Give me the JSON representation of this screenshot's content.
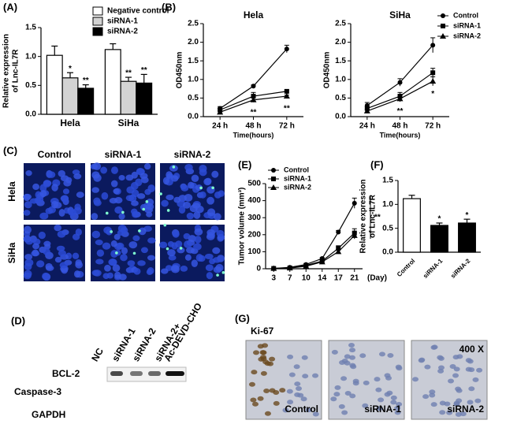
{
  "panel_labels": [
    "(A)",
    "(B)",
    "(C)",
    "(D)",
    "(E)",
    "(F)",
    "(G)"
  ],
  "chart_data": [
    {
      "type": "bar",
      "ylabel": [
        "Relative expression",
        "of Lnc-IL7R"
      ],
      "categories": [
        "Hela",
        "SiHa"
      ],
      "series": [
        {
          "name": "Negative control",
          "color": "#ffffff",
          "values": [
            1.02,
            1.12
          ],
          "errors": [
            0.16,
            0.1
          ],
          "significance": [
            null,
            null
          ]
        },
        {
          "name": "siRNA-1",
          "color": "#d3d3d3",
          "values": [
            0.63,
            0.57
          ],
          "errors": [
            0.09,
            0.07
          ],
          "significance": [
            "*",
            "**"
          ]
        },
        {
          "name": "siRNA-2",
          "color": "#000000",
          "values": [
            0.45,
            0.54
          ],
          "errors": [
            0.06,
            0.15
          ],
          "significance": [
            "**",
            "**"
          ]
        }
      ],
      "ylim": [
        0,
        1.5
      ],
      "yticks": [
        {
          "value": 0,
          "label": "0.0"
        },
        0.5,
        {
          "value": 1,
          "label": "1.0"
        },
        1.5
      ],
      "legend": true
    },
    {
      "type": "line",
      "title": "Hela",
      "ylabel": [
        "OD450nm"
      ],
      "xlabel": "Time(hours)",
      "categories": [
        "24 h",
        "48 h",
        "72 h"
      ],
      "series": [
        {
          "marker": "circle",
          "values": [
            0.22,
            0.82,
            1.82
          ],
          "errors": [
            0.05,
            0.03,
            0.1
          ]
        },
        {
          "marker": "square",
          "values": [
            0.18,
            0.55,
            0.68
          ],
          "errors": [
            0.04,
            0.1,
            0.04
          ]
        },
        {
          "marker": "triangle",
          "values": [
            0.12,
            0.45,
            0.55
          ],
          "errors": [
            0.04,
            0.06,
            0.03
          ],
          "significance": [
            null,
            "**",
            "**"
          ]
        }
      ],
      "ylim": [
        0,
        2.5
      ],
      "yticks": [
        {
          "value": 0,
          "label": "0.0"
        },
        0.5,
        {
          "value": 1,
          "label": "1.0"
        },
        1.5,
        {
          "value": 2,
          "label": "2.0"
        },
        2.5
      ],
      "legend": false
    },
    {
      "type": "line",
      "title": "SiHa",
      "ylabel": [
        "OD450nm"
      ],
      "xlabel": "Time(hours)",
      "categories": [
        "24 h",
        "48 h",
        "72 h"
      ],
      "series": [
        {
          "name": "Control",
          "marker": "circle",
          "values": [
            0.3,
            0.92,
            1.92
          ],
          "errors": [
            0.08,
            0.1,
            0.2
          ]
        },
        {
          "name": "siRNA-1",
          "marker": "square",
          "values": [
            0.22,
            0.55,
            1.18
          ],
          "errors": [
            0.05,
            0.1,
            0.12
          ]
        },
        {
          "name": "siRNA-2",
          "marker": "triangle",
          "values": [
            0.15,
            0.48,
            0.95
          ],
          "errors": [
            0.05,
            0.08,
            0.12
          ],
          "significance": [
            null,
            "**",
            "*"
          ]
        }
      ],
      "ylim": [
        0,
        2.5
      ],
      "yticks": [
        {
          "value": 0,
          "label": "0.0"
        },
        0.5,
        {
          "value": 1,
          "label": "1.0"
        },
        1.5,
        {
          "value": 2,
          "label": "2.0"
        },
        2.5
      ],
      "legend": true
    },
    {
      "type": "line",
      "ylabel": [
        "Tumor volume (mm³)"
      ],
      "xlabel": "(Day)",
      "annotation": "**",
      "categories": [
        "3",
        "7",
        "10",
        "14",
        "17",
        "21"
      ],
      "series": [
        {
          "name": "Control",
          "marker": "circle",
          "values": [
            2,
            8,
            25,
            60,
            215,
            385
          ],
          "errors": [
            1,
            2,
            4,
            6,
            10,
            30
          ]
        },
        {
          "name": "siRNA-1",
          "marker": "square",
          "values": [
            2,
            5,
            20,
            45,
            120,
            210
          ],
          "errors": [
            1,
            2,
            3,
            5,
            15,
            25
          ]
        },
        {
          "name": "siRNA-2",
          "marker": "triangle",
          "values": [
            2,
            4,
            15,
            40,
            100,
            195
          ],
          "errors": [
            1,
            2,
            3,
            5,
            12,
            20
          ]
        }
      ],
      "ylim": [
        0,
        500
      ],
      "yticks": [
        0,
        100,
        200,
        300,
        400,
        500
      ],
      "legend": true
    },
    {
      "type": "bar",
      "ylabel": [
        "Relative expression",
        "of Lnc-IL7R"
      ],
      "categories": [
        "Control",
        "siRNA-1",
        "siRNA-2"
      ],
      "values": [
        1.12,
        0.56,
        0.61
      ],
      "errors": [
        0.07,
        0.05,
        0.08
      ],
      "colors": [
        "#ffffff",
        "#000000",
        "#000000"
      ],
      "significance": [
        null,
        "*",
        "*"
      ],
      "ylim": [
        0,
        1.5
      ],
      "yticks": [
        {
          "value": 0,
          "label": "0.0"
        },
        0.5,
        {
          "value": 1,
          "label": "1.0"
        },
        1.5
      ]
    }
  ],
  "microscopy": {
    "columns": [
      "Control",
      "siRNA-1",
      "siRNA-2"
    ],
    "rows": [
      "Hela",
      "SiHa"
    ]
  },
  "western_blot": {
    "lanes": [
      [
        "NC"
      ],
      [
        "siRNA-1"
      ],
      [
        "siRNA-2"
      ],
      [
        "siRNA-2+",
        "Ac-DEVD-CHO"
      ]
    ],
    "proteins": [
      "BCL-2",
      "Caspase-3",
      "GAPDH"
    ]
  },
  "ihc": {
    "title": "Ki-67",
    "magnification": "400 X",
    "panels": [
      "Control",
      "siRNA-1",
      "siRNA-2"
    ]
  }
}
